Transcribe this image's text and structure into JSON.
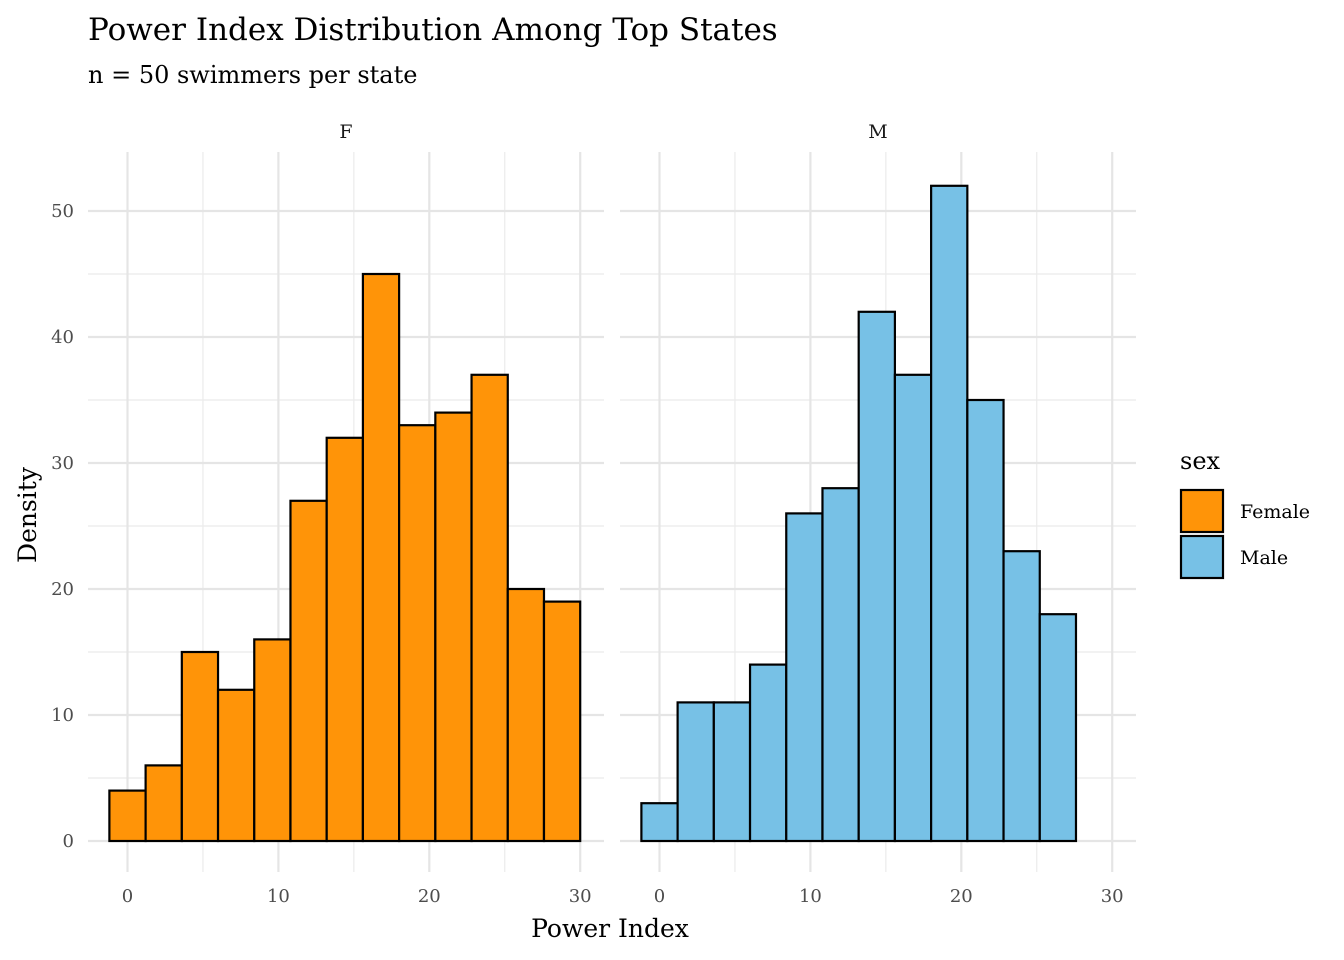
{
  "chart_data": {
    "type": "bar",
    "title": "Power Index Distribution Among Top States",
    "subtitle": "n = 50 swimmers per state",
    "xlabel": "Power Index",
    "ylabel": "Density",
    "xlim": [
      -1.5,
      30.5
    ],
    "ylim": [
      0,
      55
    ],
    "x_ticks": [
      0,
      10,
      20,
      30
    ],
    "y_ticks": [
      0,
      10,
      20,
      30,
      40,
      50
    ],
    "grid": true,
    "legend": {
      "title": "sex",
      "position": "right",
      "entries": [
        {
          "label": "Female",
          "color": "#FF9408"
        },
        {
          "label": "Male",
          "color": "#77C1E6"
        }
      ]
    },
    "bin_width": 2.4,
    "bin_start": -1.2,
    "panels": [
      {
        "strip": "F",
        "series": "Female",
        "fill": "#FF9408",
        "values": [
          4,
          6,
          15,
          12,
          16,
          27,
          32,
          45,
          33,
          34,
          37,
          20,
          19
        ]
      },
      {
        "strip": "M",
        "series": "Male",
        "fill": "#77C1E6",
        "values": [
          3,
          11,
          11,
          14,
          26,
          28,
          42,
          37,
          52,
          35,
          23,
          18,
          0
        ]
      }
    ]
  }
}
